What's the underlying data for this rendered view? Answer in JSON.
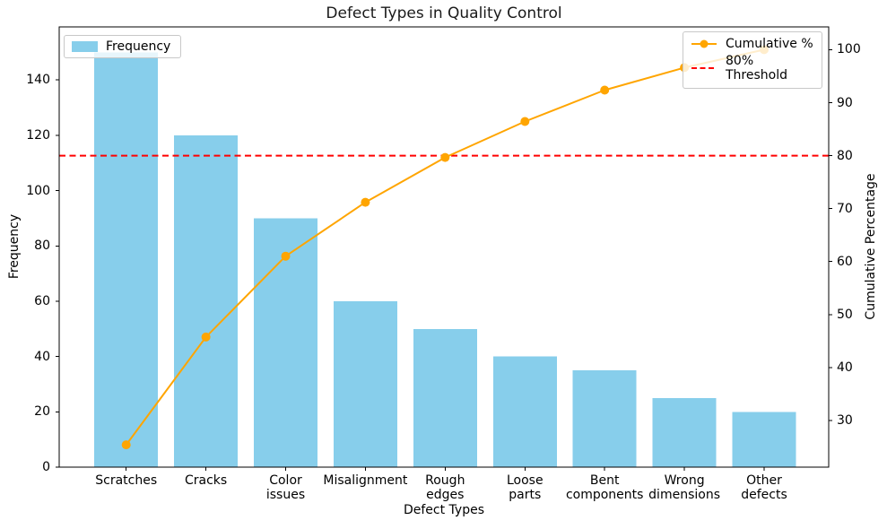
{
  "title": "Defect Types in Quality Control",
  "axes": {
    "x_label": "Defect Types",
    "y_left_label": "Frequency",
    "y_right_label": "Cumulative Percentage"
  },
  "legend": {
    "frequency_label": "Frequency",
    "cumulative_label": "Cumulative %",
    "threshold_label": "80% Threshold"
  },
  "colors": {
    "bar": "#87CEEB",
    "line": "#FFA500",
    "threshold": "#FF0000",
    "axis": "#000000"
  },
  "chart_data": {
    "type": "bar",
    "title": "Defect Types in Quality Control",
    "xlabel": "Defect Types",
    "ylabel": "Frequency",
    "ylabel_right": "Cumulative Percentage",
    "categories": [
      "Scratches",
      "Cracks",
      "Color issues",
      "Misalignment",
      "Rough edges",
      "Loose parts",
      "Bent components",
      "Wrong dimensions",
      "Other defects"
    ],
    "category_display_labels": [
      "Scratches",
      "Cracks",
      "Color\nissues",
      "Misalignment",
      "Rough\nedges",
      "Loose\nparts",
      "Bent\ncomponents",
      "Wrong\ndimensions",
      "Other\ndefects"
    ],
    "series": [
      {
        "name": "Frequency",
        "type": "bar",
        "axis": "left",
        "color": "#87CEEB",
        "values": [
          150,
          120,
          90,
          60,
          50,
          40,
          35,
          25,
          20
        ]
      },
      {
        "name": "Cumulative %",
        "type": "line",
        "axis": "right",
        "color": "#FFA500",
        "marker": "circle",
        "values": [
          25.42,
          45.76,
          61.02,
          71.19,
          79.66,
          86.44,
          92.37,
          96.61,
          100.0
        ]
      }
    ],
    "threshold": {
      "name": "80% Threshold",
      "axis": "right",
      "value": 80,
      "color": "#FF0000",
      "style": "dashed"
    },
    "ylim_left": [
      0,
      159.2
    ],
    "ylim_right": [
      21.2,
      104.3
    ],
    "yticks_left": [
      0,
      20,
      40,
      60,
      80,
      100,
      120,
      140
    ],
    "yticks_right": [
      30,
      40,
      50,
      60,
      70,
      80,
      90,
      100
    ],
    "grid": false,
    "legend_positions": {
      "frequency": "upper left",
      "lines": "upper right"
    }
  }
}
